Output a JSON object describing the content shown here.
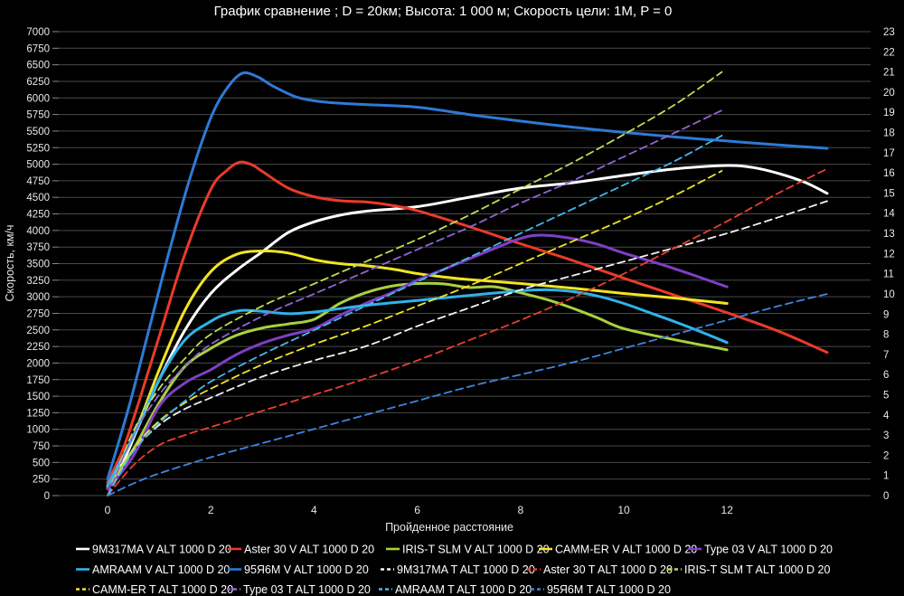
{
  "colors": {
    "background": "#000000",
    "grid": "#4a4a4a",
    "tick": "#8a8a8a",
    "text": "#e8e8e8"
  },
  "chart_data": {
    "type": "line",
    "title": "График сравнение ; D = 20км; Высота: 1 000 м; Скорость цели: 1М, P = 0",
    "xlabel": "Пройденное расстояние",
    "ylabel": "Скорость, км/ч",
    "legend_position": "bottom",
    "grid": "horizontal only",
    "axes": {
      "x": {
        "min": -0.95,
        "max": 14.8,
        "ticks": [
          0,
          2,
          4,
          6,
          8,
          10,
          12
        ]
      },
      "left": {
        "min": 0,
        "max": 7000,
        "step": 250
      },
      "right": {
        "min": 0,
        "max": 23,
        "step": 1
      }
    },
    "series": [
      {
        "name": "9M317MA V ALT 1000 D 20",
        "axis": "left",
        "dash": false,
        "color": "#ffffff",
        "points": [
          [
            0,
            150
          ],
          [
            0.3,
            500
          ],
          [
            0.6,
            1050
          ],
          [
            1,
            1750
          ],
          [
            1.5,
            2500
          ],
          [
            2,
            3050
          ],
          [
            2.5,
            3400
          ],
          [
            3,
            3680
          ],
          [
            3.5,
            3970
          ],
          [
            4,
            4130
          ],
          [
            4.5,
            4230
          ],
          [
            5,
            4290
          ],
          [
            6,
            4360
          ],
          [
            7,
            4500
          ],
          [
            8,
            4640
          ],
          [
            9,
            4720
          ],
          [
            10,
            4830
          ],
          [
            11,
            4930
          ],
          [
            12,
            4980
          ],
          [
            12.5,
            4950
          ],
          [
            13,
            4860
          ],
          [
            13.5,
            4730
          ],
          [
            13.94,
            4560
          ]
        ]
      },
      {
        "name": "Aster 30 V ALT 1000 D 20",
        "axis": "left",
        "dash": false,
        "color": "#ea3b28",
        "points": [
          [
            0,
            200
          ],
          [
            0.3,
            700
          ],
          [
            0.6,
            1400
          ],
          [
            1,
            2400
          ],
          [
            1.5,
            3650
          ],
          [
            2,
            4620
          ],
          [
            2.3,
            4900
          ],
          [
            2.55,
            5030
          ],
          [
            2.8,
            4990
          ],
          [
            3,
            4890
          ],
          [
            3.5,
            4640
          ],
          [
            4,
            4510
          ],
          [
            4.5,
            4450
          ],
          [
            5,
            4430
          ],
          [
            5.5,
            4380
          ],
          [
            6,
            4300
          ],
          [
            7,
            4060
          ],
          [
            8,
            3800
          ],
          [
            9,
            3550
          ],
          [
            10,
            3280
          ],
          [
            11,
            3020
          ],
          [
            12,
            2760
          ],
          [
            13,
            2480
          ],
          [
            13.94,
            2160
          ]
        ]
      },
      {
        "name": "IRIS-T SLM V ALT 1000 D 20",
        "axis": "left",
        "dash": false,
        "color": "#aad03f",
        "points": [
          [
            0,
            120
          ],
          [
            0.5,
            700
          ],
          [
            1,
            1400
          ],
          [
            1.5,
            1950
          ],
          [
            2,
            2220
          ],
          [
            2.5,
            2420
          ],
          [
            3,
            2530
          ],
          [
            3.5,
            2590
          ],
          [
            4,
            2660
          ],
          [
            4.5,
            2900
          ],
          [
            5,
            3060
          ],
          [
            5.5,
            3160
          ],
          [
            6,
            3200
          ],
          [
            6.5,
            3195
          ],
          [
            7,
            3140
          ],
          [
            7.5,
            3150
          ],
          [
            8,
            3060
          ],
          [
            8.5,
            2960
          ],
          [
            9,
            2830
          ],
          [
            9.5,
            2680
          ],
          [
            10,
            2520
          ],
          [
            11,
            2350
          ],
          [
            12,
            2200
          ]
        ]
      },
      {
        "name": "CAMM-ER V ALT 1000 D 20",
        "axis": "left",
        "dash": false,
        "color": "#f2e424",
        "points": [
          [
            0,
            150
          ],
          [
            0.5,
            900
          ],
          [
            1,
            1900
          ],
          [
            1.5,
            2800
          ],
          [
            2,
            3380
          ],
          [
            2.5,
            3640
          ],
          [
            3,
            3690
          ],
          [
            3.5,
            3660
          ],
          [
            4,
            3560
          ],
          [
            4.5,
            3500
          ],
          [
            5,
            3470
          ],
          [
            5.5,
            3420
          ],
          [
            6,
            3350
          ],
          [
            6.5,
            3300
          ],
          [
            7,
            3260
          ],
          [
            8,
            3200
          ],
          [
            9,
            3130
          ],
          [
            10,
            3050
          ],
          [
            11,
            2980
          ],
          [
            12,
            2900
          ]
        ]
      },
      {
        "name": "Type 03 V ALT 1000 D 20",
        "axis": "left",
        "dash": false,
        "color": "#7e3fc4",
        "points": [
          [
            0,
            100
          ],
          [
            0.5,
            600
          ],
          [
            1,
            1350
          ],
          [
            1.5,
            1700
          ],
          [
            2,
            1900
          ],
          [
            2.5,
            2130
          ],
          [
            3,
            2300
          ],
          [
            3.5,
            2420
          ],
          [
            4,
            2520
          ],
          [
            4.5,
            2720
          ],
          [
            5,
            2900
          ],
          [
            5.5,
            3060
          ],
          [
            6,
            3250
          ],
          [
            6.5,
            3410
          ],
          [
            7,
            3570
          ],
          [
            7.5,
            3730
          ],
          [
            8,
            3880
          ],
          [
            8.4,
            3930
          ],
          [
            9,
            3880
          ],
          [
            9.5,
            3790
          ],
          [
            10,
            3660
          ],
          [
            11,
            3420
          ],
          [
            12,
            3150
          ]
        ]
      },
      {
        "name": "AMRAAM V ALT 1000 D 20",
        "axis": "left",
        "dash": false,
        "color": "#2fb3ea",
        "points": [
          [
            0,
            150
          ],
          [
            0.5,
            900
          ],
          [
            1,
            1750
          ],
          [
            1.5,
            2350
          ],
          [
            2,
            2630
          ],
          [
            2.3,
            2740
          ],
          [
            2.6,
            2795
          ],
          [
            3,
            2780
          ],
          [
            3.5,
            2745
          ],
          [
            4,
            2770
          ],
          [
            4.5,
            2820
          ],
          [
            5,
            2870
          ],
          [
            6,
            2945
          ],
          [
            7,
            3020
          ],
          [
            8,
            3090
          ],
          [
            8.5,
            3105
          ],
          [
            9,
            3080
          ],
          [
            9.5,
            3010
          ],
          [
            10,
            2900
          ],
          [
            10.5,
            2760
          ],
          [
            11,
            2620
          ],
          [
            11.5,
            2470
          ],
          [
            12,
            2310
          ]
        ]
      },
      {
        "name": "95Я6М V ALT 1000 D 20",
        "axis": "left",
        "dash": false,
        "color": "#2e7ad6",
        "points": [
          [
            0,
            250
          ],
          [
            0.4,
            1300
          ],
          [
            0.8,
            2500
          ],
          [
            1.2,
            3700
          ],
          [
            1.6,
            4800
          ],
          [
            2,
            5700
          ],
          [
            2.3,
            6130
          ],
          [
            2.6,
            6370
          ],
          [
            2.9,
            6320
          ],
          [
            3.2,
            6180
          ],
          [
            3.6,
            6030
          ],
          [
            3.9,
            5970
          ],
          [
            4.3,
            5930
          ],
          [
            5,
            5900
          ],
          [
            6,
            5860
          ],
          [
            7,
            5750
          ],
          [
            8,
            5650
          ],
          [
            9,
            5560
          ],
          [
            10,
            5480
          ],
          [
            11,
            5410
          ],
          [
            12,
            5350
          ],
          [
            13,
            5290
          ],
          [
            13.94,
            5240
          ]
        ]
      },
      {
        "name": "9M317MA T ALT 1000 D 20",
        "axis": "right",
        "dash": true,
        "color": "#f2f2f2",
        "points": [
          [
            0,
            0
          ],
          [
            0.5,
            2.2
          ],
          [
            1,
            3.5
          ],
          [
            1.5,
            4.3
          ],
          [
            2,
            4.85
          ],
          [
            3,
            5.9
          ],
          [
            4,
            6.7
          ],
          [
            5,
            7.4
          ],
          [
            6,
            8.4
          ],
          [
            7,
            9.3
          ],
          [
            8,
            10.2
          ],
          [
            9,
            10.9
          ],
          [
            10,
            11.6
          ],
          [
            11,
            12.3
          ],
          [
            12,
            13.0
          ],
          [
            13,
            13.8
          ],
          [
            13.94,
            14.6
          ]
        ]
      },
      {
        "name": "Aster 30 T ALT 1000 D 20",
        "axis": "right",
        "dash": true,
        "color": "#e8402f",
        "points": [
          [
            0,
            0
          ],
          [
            0.5,
            1.5
          ],
          [
            1,
            2.5
          ],
          [
            1.5,
            3.0
          ],
          [
            2,
            3.4
          ],
          [
            3,
            4.2
          ],
          [
            4,
            5.0
          ],
          [
            5,
            5.8
          ],
          [
            6,
            6.7
          ],
          [
            7,
            7.7
          ],
          [
            8,
            8.7
          ],
          [
            9,
            9.8
          ],
          [
            10,
            11.0
          ],
          [
            11,
            12.3
          ],
          [
            12,
            13.6
          ],
          [
            13,
            15.0
          ],
          [
            13.94,
            16.2
          ]
        ]
      },
      {
        "name": "IRIS-T SLM T ALT 1000 D 20",
        "axis": "right",
        "dash": true,
        "color": "#c0dc55",
        "points": [
          [
            0,
            0
          ],
          [
            0.5,
            3.2
          ],
          [
            1,
            5.3
          ],
          [
            1.5,
            6.8
          ],
          [
            2,
            8.0
          ],
          [
            3,
            9.4
          ],
          [
            4,
            10.5
          ],
          [
            5,
            11.6
          ],
          [
            6,
            12.7
          ],
          [
            7,
            13.9
          ],
          [
            8,
            15.2
          ],
          [
            9,
            16.5
          ],
          [
            10,
            17.9
          ],
          [
            11,
            19.4
          ],
          [
            11.9,
            21.0
          ]
        ]
      },
      {
        "name": "CAMM-ER T ALT 1000 D 20",
        "axis": "right",
        "dash": true,
        "color": "#f2e424",
        "points": [
          [
            0,
            0
          ],
          [
            0.5,
            2.3
          ],
          [
            1,
            3.7
          ],
          [
            1.5,
            4.6
          ],
          [
            2,
            5.3
          ],
          [
            3,
            6.5
          ],
          [
            4,
            7.5
          ],
          [
            5,
            8.4
          ],
          [
            6,
            9.4
          ],
          [
            7,
            10.4
          ],
          [
            8,
            11.5
          ],
          [
            9,
            12.6
          ],
          [
            10,
            13.7
          ],
          [
            11,
            14.9
          ],
          [
            11.9,
            16.1
          ]
        ]
      },
      {
        "name": "Type 03 T ALT 1000 D 20",
        "axis": "right",
        "dash": true,
        "color": "#9166d6",
        "points": [
          [
            0,
            0
          ],
          [
            0.5,
            3.0
          ],
          [
            1,
            5.0
          ],
          [
            1.5,
            6.4
          ],
          [
            2,
            7.5
          ],
          [
            3,
            8.9
          ],
          [
            4,
            10.0
          ],
          [
            5,
            11.1
          ],
          [
            6,
            12.2
          ],
          [
            7,
            13.3
          ],
          [
            8,
            14.5
          ],
          [
            9,
            15.6
          ],
          [
            10,
            16.8
          ],
          [
            11,
            18.0
          ],
          [
            11.9,
            19.1
          ]
        ]
      },
      {
        "name": "AMRAAM T ALT 1000 D 20",
        "axis": "right",
        "dash": true,
        "color": "#45b8ec",
        "points": [
          [
            0,
            0
          ],
          [
            0.5,
            2.2
          ],
          [
            1,
            3.6
          ],
          [
            1.5,
            4.7
          ],
          [
            2,
            5.65
          ],
          [
            3,
            7.0
          ],
          [
            4,
            8.2
          ],
          [
            5,
            9.4
          ],
          [
            6,
            10.6
          ],
          [
            7,
            11.8
          ],
          [
            8,
            13.0
          ],
          [
            9,
            14.2
          ],
          [
            10,
            15.4
          ],
          [
            11,
            16.6
          ],
          [
            11.9,
            17.85
          ]
        ]
      },
      {
        "name": "95Я6М T ALT 1000 D 20",
        "axis": "right",
        "dash": true,
        "color": "#3f86e0",
        "points": [
          [
            0,
            0
          ],
          [
            0.5,
            0.6
          ],
          [
            1,
            1.1
          ],
          [
            2,
            1.9
          ],
          [
            3,
            2.6
          ],
          [
            4,
            3.3
          ],
          [
            5,
            4.0
          ],
          [
            6,
            4.7
          ],
          [
            7,
            5.4
          ],
          [
            8,
            6.0
          ],
          [
            9,
            6.6
          ],
          [
            10,
            7.3
          ],
          [
            11,
            8.0
          ],
          [
            12,
            8.7
          ],
          [
            13,
            9.4
          ],
          [
            13.94,
            10.0
          ]
        ]
      }
    ],
    "legend_rows": [
      [
        "9M317MA V ALT 1000 D 20",
        "Aster 30 V ALT 1000 D 20",
        "IRIS-T SLM V ALT 1000 D 20",
        "CAMM-ER V ALT 1000 D 20",
        "Type 03 V ALT 1000 D 20"
      ],
      [
        "AMRAAM V ALT 1000 D 20",
        "95Я6М V ALT 1000 D 20",
        "9M317MA T ALT 1000 D 20",
        "Aster 30 T ALT 1000 D 20",
        "IRIS-T SLM T ALT 1000 D 20"
      ],
      [
        "CAMM-ER T ALT 1000 D 20",
        "Type 03 T ALT 1000 D 20",
        "AMRAAM T ALT 1000 D 20",
        "95Я6М T ALT 1000 D 20"
      ]
    ]
  }
}
